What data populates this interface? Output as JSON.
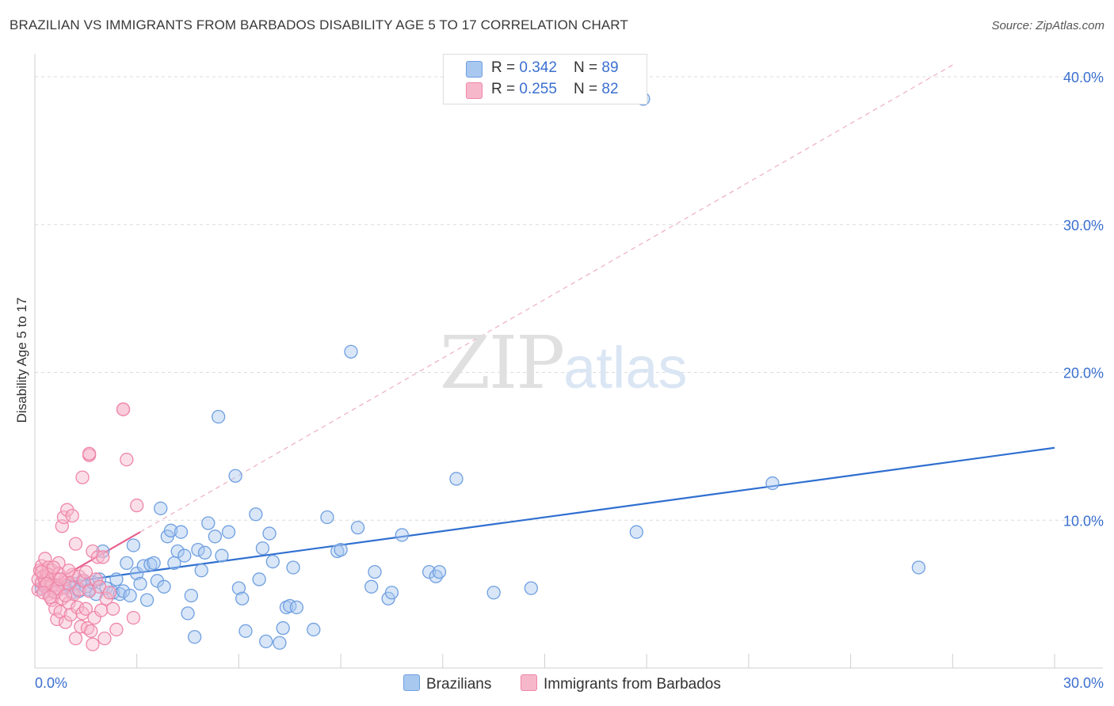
{
  "header": {
    "title": "BRAZILIAN VS IMMIGRANTS FROM BARBADOS DISABILITY AGE 5 TO 17 CORRELATION CHART",
    "source": "Source: ZipAtlas.com"
  },
  "watermark": {
    "zip": "ZIP",
    "atlas": "atlas"
  },
  "legend": {
    "rows": [
      {
        "r_label": "R = ",
        "r_value": "0.342",
        "n_label": "N = ",
        "n_value": "89",
        "color": "#a8c8f0",
        "border": "#6f9fe0"
      },
      {
        "r_label": "R = ",
        "r_value": "0.255",
        "n_label": "N = ",
        "n_value": "82",
        "color": "#f7b7cb",
        "border": "#ef86a8"
      }
    ]
  },
  "bottom_legend": [
    {
      "label": "Brazilians",
      "color": "#a8c8f0"
    },
    {
      "label": "Immigrants from Barbados",
      "color": "#f7b7cb"
    }
  ],
  "chart_data": {
    "type": "scatter",
    "title": "BRAZILIAN VS IMMIGRANTS FROM BARBADOS DISABILITY AGE 5 TO 17 CORRELATION CHART",
    "ylabel": "Disability Age 5 to 17",
    "xlabel": "",
    "xlim": [
      0,
      30
    ],
    "ylim": [
      0,
      40
    ],
    "x_tick_labels": [
      "0.0%",
      "30.0%"
    ],
    "y_tick_labels": [
      "10.0%",
      "20.0%",
      "30.0%",
      "40.0%"
    ],
    "y_ticks": [
      10,
      20,
      30,
      40
    ],
    "grid": true,
    "legend_position": "top-center",
    "series": [
      {
        "name": "Brazilians",
        "color": "#6f9fe0",
        "fill": "#a8c8f0",
        "trend": {
          "x": [
            0,
            30
          ],
          "y": [
            5.5,
            14.9
          ],
          "style": "solid"
        },
        "points": [
          [
            0.2,
            5.4
          ],
          [
            0.3,
            5.6
          ],
          [
            0.4,
            5.2
          ],
          [
            0.5,
            5.7
          ],
          [
            0.6,
            5.3
          ],
          [
            0.7,
            5.6
          ],
          [
            0.8,
            5.5
          ],
          [
            0.9,
            5.4
          ],
          [
            1.0,
            5.6
          ],
          [
            1.1,
            5.1
          ],
          [
            1.2,
            5.7
          ],
          [
            1.3,
            5.2
          ],
          [
            1.4,
            5.9
          ],
          [
            1.5,
            5.5
          ],
          [
            1.6,
            5.3
          ],
          [
            1.7,
            5.8
          ],
          [
            1.8,
            5.0
          ],
          [
            1.9,
            6.0
          ],
          [
            2.0,
            7.9
          ],
          [
            2.1,
            5.4
          ],
          [
            2.3,
            5.1
          ],
          [
            2.4,
            6.0
          ],
          [
            2.5,
            5.0
          ],
          [
            2.6,
            5.2
          ],
          [
            2.7,
            7.1
          ],
          [
            2.8,
            4.9
          ],
          [
            2.9,
            8.3
          ],
          [
            3.0,
            6.4
          ],
          [
            3.1,
            5.7
          ],
          [
            3.2,
            6.9
          ],
          [
            3.3,
            4.6
          ],
          [
            3.4,
            7.0
          ],
          [
            3.5,
            7.1
          ],
          [
            3.6,
            5.9
          ],
          [
            3.7,
            10.8
          ],
          [
            3.8,
            5.5
          ],
          [
            3.9,
            8.9
          ],
          [
            4.0,
            9.3
          ],
          [
            4.1,
            7.1
          ],
          [
            4.2,
            7.9
          ],
          [
            4.3,
            9.2
          ],
          [
            4.4,
            7.6
          ],
          [
            4.5,
            3.7
          ],
          [
            4.6,
            4.9
          ],
          [
            4.7,
            2.1
          ],
          [
            4.8,
            8.0
          ],
          [
            4.9,
            6.6
          ],
          [
            5.0,
            7.8
          ],
          [
            5.1,
            9.8
          ],
          [
            5.3,
            8.9
          ],
          [
            5.4,
            17.0
          ],
          [
            5.5,
            7.6
          ],
          [
            5.7,
            9.2
          ],
          [
            5.9,
            13.0
          ],
          [
            6.0,
            5.4
          ],
          [
            6.1,
            4.7
          ],
          [
            6.2,
            2.5
          ],
          [
            6.5,
            10.4
          ],
          [
            6.6,
            6.0
          ],
          [
            6.7,
            8.1
          ],
          [
            6.8,
            1.8
          ],
          [
            6.9,
            9.1
          ],
          [
            7.0,
            7.2
          ],
          [
            7.2,
            1.7
          ],
          [
            7.3,
            2.7
          ],
          [
            7.4,
            4.1
          ],
          [
            7.5,
            4.2
          ],
          [
            7.6,
            6.8
          ],
          [
            7.7,
            4.1
          ],
          [
            8.2,
            2.6
          ],
          [
            8.6,
            10.2
          ],
          [
            8.9,
            7.9
          ],
          [
            9.0,
            8.0
          ],
          [
            9.3,
            21.4
          ],
          [
            9.5,
            9.5
          ],
          [
            9.9,
            5.5
          ],
          [
            10.0,
            6.5
          ],
          [
            10.4,
            4.7
          ],
          [
            10.5,
            5.1
          ],
          [
            10.8,
            9.0
          ],
          [
            11.6,
            6.5
          ],
          [
            11.8,
            6.2
          ],
          [
            11.9,
            6.5
          ],
          [
            12.4,
            12.8
          ],
          [
            13.5,
            5.1
          ],
          [
            14.6,
            5.4
          ],
          [
            17.7,
            9.2
          ],
          [
            17.9,
            38.5
          ],
          [
            21.7,
            12.5
          ],
          [
            26.0,
            6.8
          ]
        ]
      },
      {
        "name": "Immigrants from Barbados",
        "color": "#ef86a8",
        "fill": "#f7b7cb",
        "trend": {
          "x": [
            0,
            3.1
          ],
          "y": [
            5.1,
            9.2
          ],
          "style": "solid"
        },
        "trend_extended": {
          "x": [
            3.1,
            27
          ],
          "y": [
            9.2,
            40.8
          ],
          "style": "dashed"
        },
        "points": [
          [
            0.1,
            5.3
          ],
          [
            0.1,
            6.0
          ],
          [
            0.15,
            6.6
          ],
          [
            0.2,
            5.8
          ],
          [
            0.2,
            6.9
          ],
          [
            0.25,
            6.2
          ],
          [
            0.3,
            5.5
          ],
          [
            0.3,
            7.4
          ],
          [
            0.35,
            6.4
          ],
          [
            0.4,
            5.0
          ],
          [
            0.4,
            6.8
          ],
          [
            0.45,
            5.9
          ],
          [
            0.5,
            4.6
          ],
          [
            0.5,
            6.6
          ],
          [
            0.55,
            5.2
          ],
          [
            0.6,
            4.0
          ],
          [
            0.6,
            6.1
          ],
          [
            0.65,
            3.3
          ],
          [
            0.7,
            5.6
          ],
          [
            0.7,
            7.1
          ],
          [
            0.75,
            3.8
          ],
          [
            0.8,
            4.7
          ],
          [
            0.8,
            9.6
          ],
          [
            0.85,
            5.4
          ],
          [
            0.85,
            10.2
          ],
          [
            0.9,
            3.1
          ],
          [
            0.9,
            6.0
          ],
          [
            0.95,
            10.7
          ],
          [
            1.0,
            4.4
          ],
          [
            1.0,
            5.7
          ],
          [
            1.05,
            3.6
          ],
          [
            1.1,
            10.3
          ],
          [
            1.1,
            6.3
          ],
          [
            1.15,
            5.0
          ],
          [
            1.2,
            2.0
          ],
          [
            1.2,
            8.4
          ],
          [
            1.25,
            4.1
          ],
          [
            1.3,
            5.3
          ],
          [
            1.3,
            6.2
          ],
          [
            1.35,
            2.8
          ],
          [
            1.4,
            12.9
          ],
          [
            1.4,
            3.7
          ],
          [
            1.45,
            5.9
          ],
          [
            1.5,
            6.5
          ],
          [
            1.5,
            4.0
          ],
          [
            1.55,
            2.7
          ],
          [
            1.6,
            14.4
          ],
          [
            1.6,
            5.2
          ],
          [
            1.65,
            2.5
          ],
          [
            1.7,
            1.6
          ],
          [
            1.7,
            7.9
          ],
          [
            1.75,
            3.4
          ],
          [
            1.8,
            6.0
          ],
          [
            1.85,
            7.5
          ],
          [
            1.9,
            5.5
          ],
          [
            1.95,
            3.9
          ],
          [
            2.0,
            7.5
          ],
          [
            2.05,
            2.0
          ],
          [
            2.1,
            4.7
          ],
          [
            2.2,
            5.1
          ],
          [
            2.3,
            4.0
          ],
          [
            2.4,
            2.6
          ],
          [
            2.6,
            17.5
          ],
          [
            2.7,
            14.1
          ],
          [
            2.9,
            3.4
          ],
          [
            3.0,
            11.0
          ],
          [
            0.3,
            5.9
          ],
          [
            0.4,
            6.3
          ],
          [
            0.5,
            5.6
          ],
          [
            0.6,
            5.1
          ],
          [
            0.7,
            6.4
          ],
          [
            0.2,
            6.5
          ],
          [
            0.35,
            5.7
          ],
          [
            0.55,
            6.8
          ],
          [
            0.65,
            5.4
          ],
          [
            0.9,
            4.9
          ],
          [
            1.0,
            6.6
          ],
          [
            0.25,
            5.1
          ],
          [
            0.45,
            4.8
          ],
          [
            0.75,
            6.0
          ],
          [
            1.6,
            14.5
          ],
          [
            2.6,
            17.5
          ]
        ]
      }
    ]
  }
}
